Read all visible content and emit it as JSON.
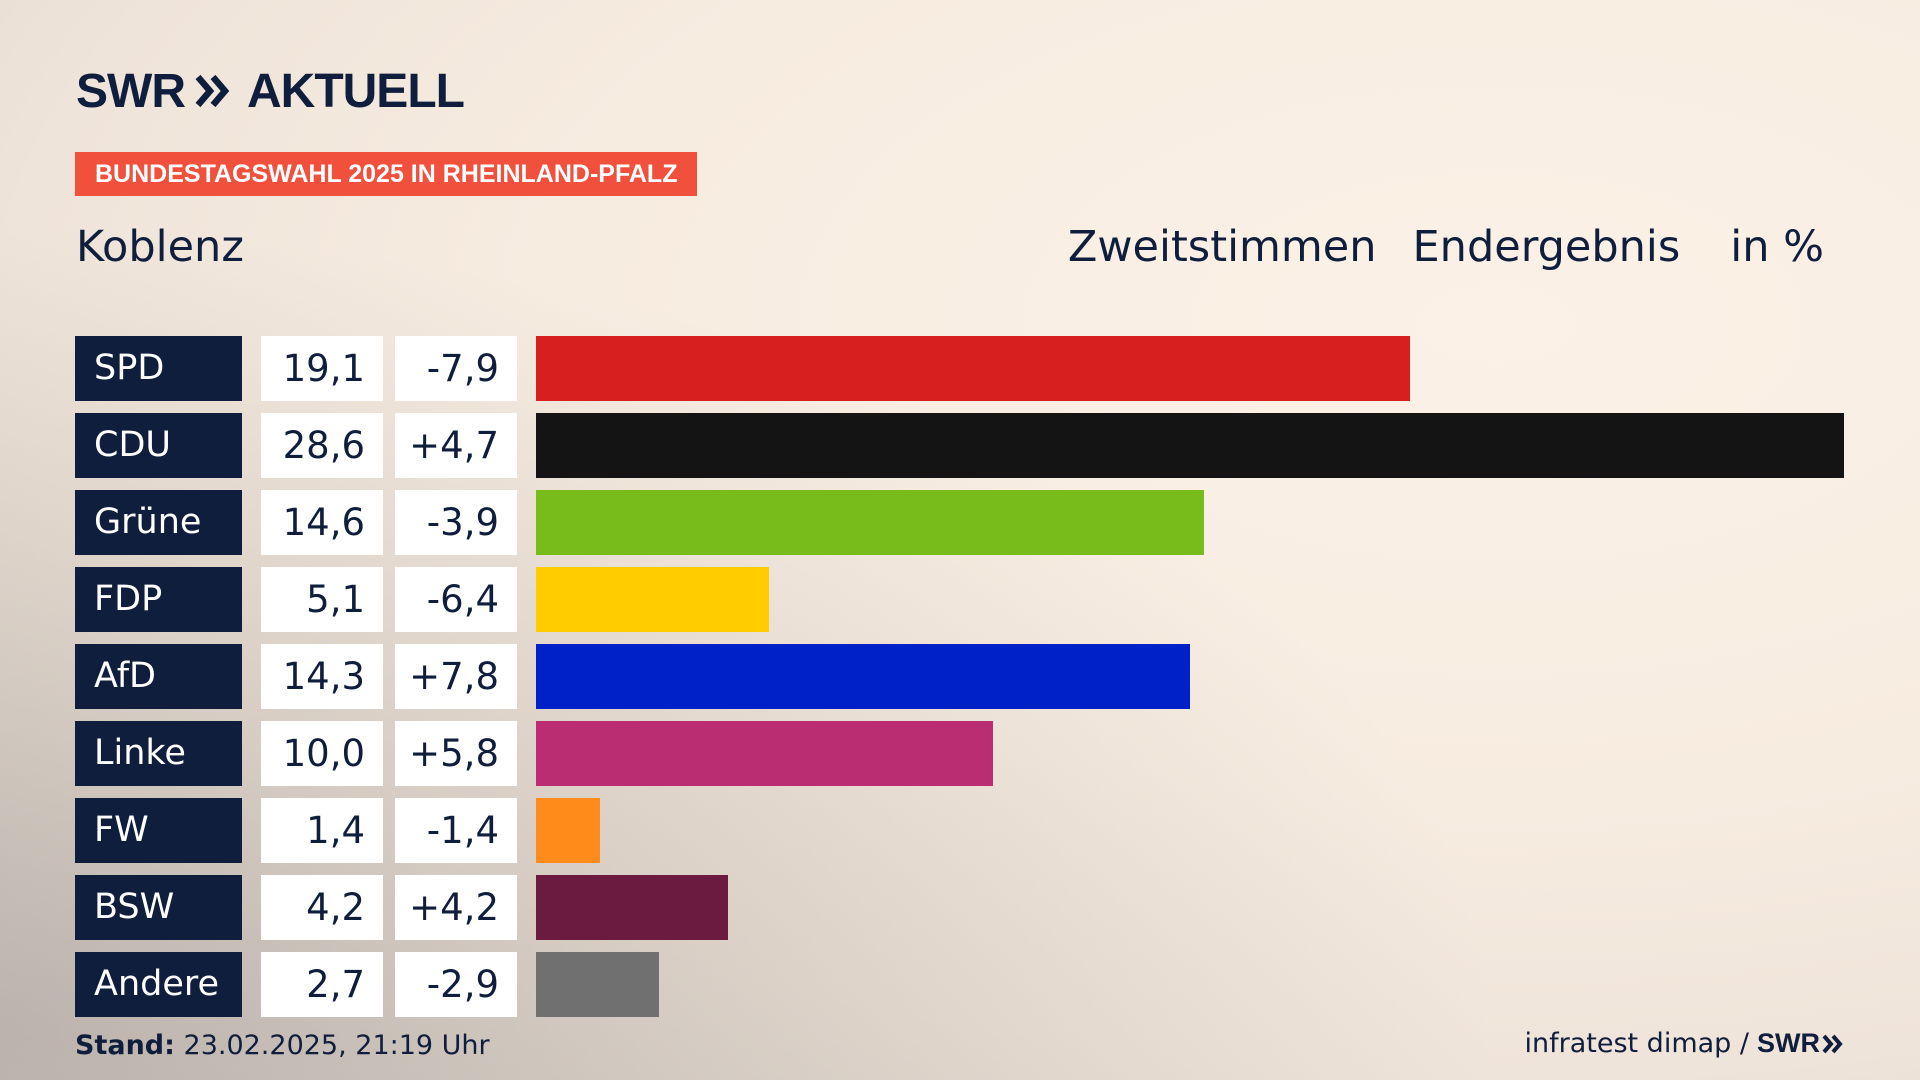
{
  "brand": {
    "swr": "SWR",
    "aktuell": "AKTUELL",
    "color_navy": "#0f1e3d",
    "color_tag": "#f1503c"
  },
  "tag_label": "BUNDESTAGSWAHL 2025 IN RHEINLAND-PFALZ",
  "region": "Koblenz",
  "header": {
    "vote_type": "Zweitstimmen",
    "status": "Endergebnis",
    "unit": "in %"
  },
  "chart_data": {
    "type": "bar",
    "orientation": "horizontal",
    "title": "Zweitstimmen Endergebnis in %",
    "categories": [
      "SPD",
      "CDU",
      "Grüne",
      "FDP",
      "AfD",
      "Linke",
      "FW",
      "BSW",
      "Andere"
    ],
    "values": [
      19.1,
      28.6,
      14.6,
      5.1,
      14.3,
      10.0,
      1.4,
      4.2,
      2.7
    ],
    "value_labels": [
      "19,1",
      "28,6",
      "14,6",
      "5,1",
      "14,3",
      "10,0",
      "1,4",
      "4,2",
      "2,7"
    ],
    "change_labels": [
      "-7,9",
      "+4,7",
      "-3,9",
      "-6,4",
      "+7,8",
      "+5,8",
      "-1,4",
      "+4,2",
      "-2,9"
    ],
    "changes": [
      -7.9,
      4.7,
      -3.9,
      -6.4,
      7.8,
      5.8,
      -1.4,
      4.2,
      -2.9
    ],
    "colors": [
      "#d71f1f",
      "#141414",
      "#78bc1b",
      "#ffcc00",
      "#0021c8",
      "#bb2d73",
      "#ff8c1a",
      "#6b1a40",
      "#707070"
    ],
    "xlim": [
      0,
      28.6
    ]
  },
  "footer": {
    "stand_label": "Stand:",
    "stand_value": "23.02.2025, 21:19 Uhr",
    "source": "infratest dimap /",
    "source_brand": "SWR"
  }
}
